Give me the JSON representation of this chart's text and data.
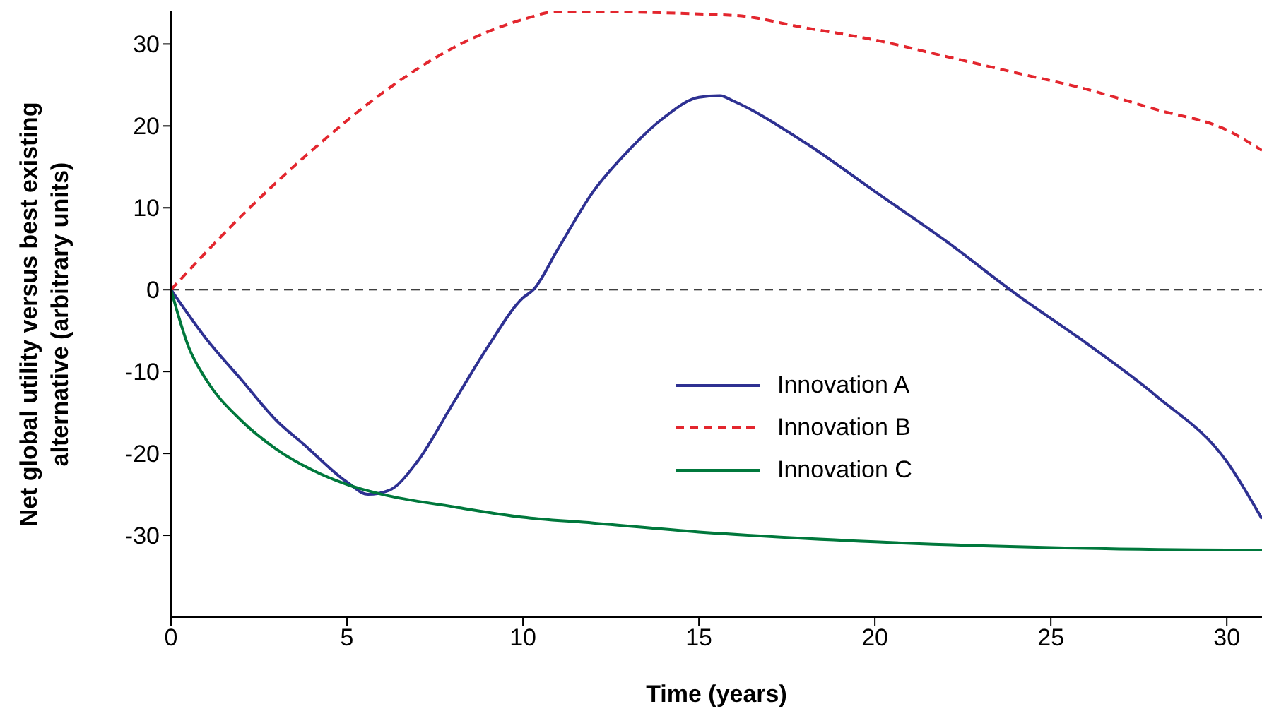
{
  "chart_data": {
    "type": "line",
    "xlabel": "Time (years)",
    "ylabel": "Net global utility versus best existing alternative (arbitrary units)",
    "xlim": [
      0,
      31
    ],
    "xticks": [
      0,
      5,
      10,
      15,
      20,
      25,
      30
    ],
    "ylim": [
      -40,
      34
    ],
    "yticks": [
      -30,
      -20,
      -10,
      0,
      10,
      20,
      30
    ],
    "grid": false,
    "legend": "right",
    "marker": "none",
    "ref_lines": [
      {
        "axis": "y",
        "value": 0,
        "color": "#000000",
        "line_style": "dashed"
      }
    ],
    "series": [
      {
        "name": "Innovation A",
        "color": "#2e3192",
        "line_style": "solid",
        "x": [
          0,
          1,
          2,
          3,
          3.8,
          5,
          5.6,
          6.2,
          7,
          8,
          9,
          10,
          10.3,
          11,
          12,
          13,
          14,
          15,
          15.6,
          16,
          18,
          20,
          22,
          24,
          26,
          28,
          30,
          31
        ],
        "values": [
          0,
          -6,
          -11,
          -16,
          -19,
          -23.5,
          -25,
          -24.5,
          -21,
          -14,
          -7,
          -1,
          0,
          5,
          12,
          17,
          21,
          23.5,
          23.7,
          23,
          18,
          12,
          6,
          -0.5,
          -6.5,
          -13,
          -21,
          -28
        ]
      },
      {
        "name": "Innovation B",
        "color": "#e3262e",
        "line_style": "dashed",
        "x": [
          0,
          2,
          4,
          6,
          8,
          10,
          11,
          16,
          18,
          20,
          22,
          24,
          26,
          28,
          30,
          31
        ],
        "values": [
          0,
          9,
          17,
          24,
          29.5,
          33,
          34,
          33.5,
          32,
          30.5,
          28.5,
          26.5,
          24.5,
          22,
          19.5,
          17
        ]
      },
      {
        "name": "Innovation C",
        "color": "#00783c",
        "line_style": "solid",
        "x": [
          0,
          0.5,
          1,
          2,
          3,
          4,
          5,
          6,
          8,
          10,
          12,
          15,
          20,
          25,
          30,
          31
        ],
        "values": [
          0,
          -7,
          -11,
          -16,
          -19.5,
          -22,
          -23.8,
          -25,
          -26.5,
          -27.8,
          -28.5,
          -29.6,
          -30.8,
          -31.5,
          -31.8,
          -31.8
        ]
      }
    ]
  }
}
